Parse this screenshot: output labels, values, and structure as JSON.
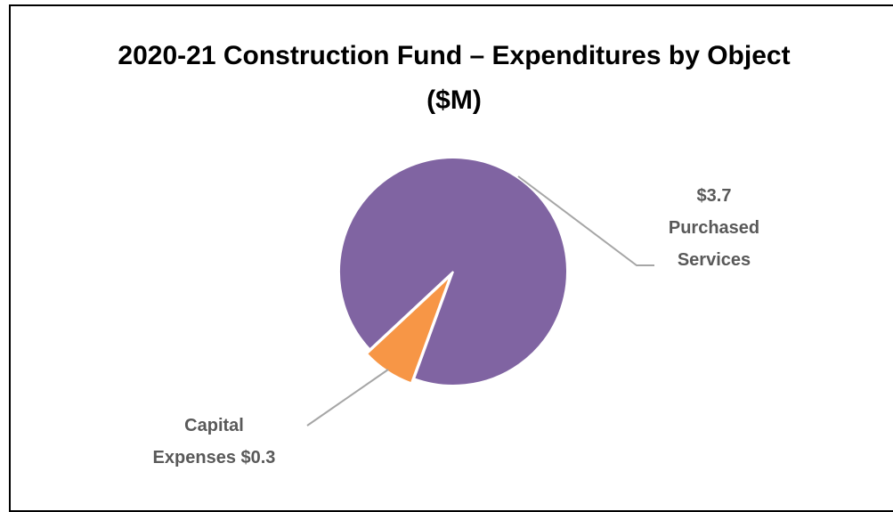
{
  "chart_data": {
    "type": "pie",
    "title": "2020-21 Construction Fund – Expenditures by Object ($M)",
    "categories": [
      "Capital Expenses",
      "Purchased Services"
    ],
    "values": [
      0.3,
      3.7
    ],
    "value_labels": [
      "$0.3",
      "$3.7"
    ],
    "colors": [
      "#f79646",
      "#8064a2"
    ]
  }
}
